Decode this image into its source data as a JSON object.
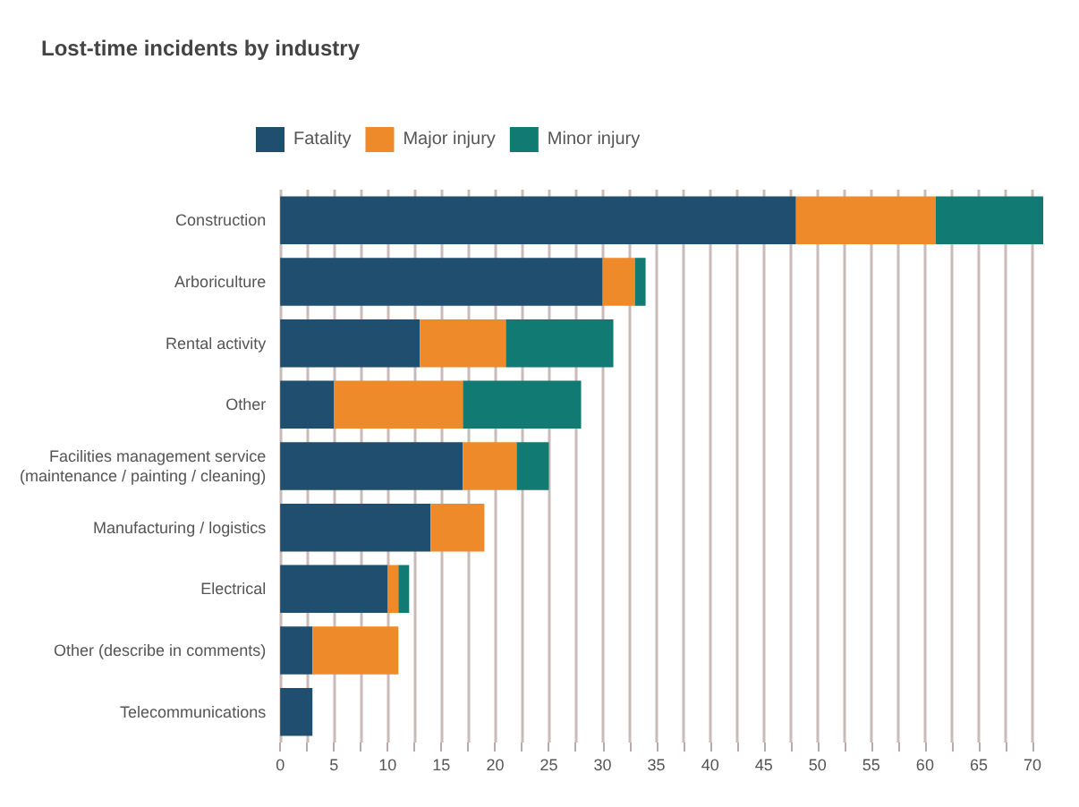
{
  "chart_data": {
    "type": "bar",
    "orientation": "horizontal",
    "stacked": true,
    "title": "Lost-time incidents by industry",
    "categories": [
      "Construction",
      "Arboriculture",
      "Rental activity",
      "Other",
      "Facilities management service\n(maintenance / painting / cleaning)",
      "Manufacturing / logistics",
      "Electrical",
      "Other (describe in comments)",
      "Telecommunications"
    ],
    "series": [
      {
        "name": "Fatality",
        "color": "#1f4e6e",
        "values": [
          48,
          30,
          13,
          5,
          17,
          14,
          10,
          3,
          3
        ]
      },
      {
        "name": "Major injury",
        "color": "#ee8a2a",
        "values": [
          13,
          3,
          8,
          12,
          5,
          5,
          1,
          8,
          0
        ]
      },
      {
        "name": "Minor injury",
        "color": "#117a72",
        "values": [
          10,
          1,
          10,
          11,
          3,
          0,
          1,
          0,
          0
        ]
      }
    ],
    "xlim": [
      0,
      71
    ],
    "xticks": [
      0,
      {
        "value": 2.5,
        "label": null
      },
      5,
      {
        "value": 7.5,
        "label": null
      },
      10,
      {
        "value": 12.5,
        "label": null
      },
      15,
      {
        "value": 17.5,
        "label": null
      },
      20,
      {
        "value": 22.5,
        "label": null
      },
      25,
      {
        "value": 27.5,
        "label": null
      },
      30,
      {
        "value": 32.5,
        "label": null
      },
      35,
      {
        "value": 37.5,
        "label": null
      },
      40,
      {
        "value": 42.5,
        "label": null
      },
      45,
      {
        "value": 47.5,
        "label": null
      },
      50,
      {
        "value": 52.5,
        "label": null
      },
      55,
      {
        "value": 57.5,
        "label": null
      },
      60,
      {
        "value": 62.5,
        "label": null
      },
      65,
      {
        "value": 67.5,
        "label": null
      },
      70
    ],
    "grid": "x",
    "legend": "top left"
  }
}
